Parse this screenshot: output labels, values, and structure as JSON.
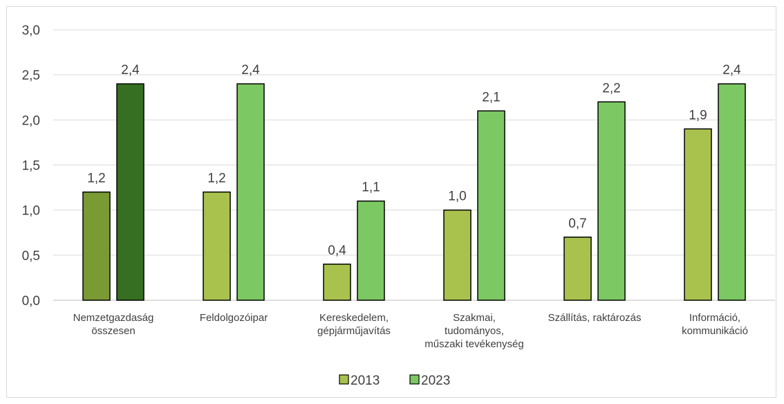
{
  "chart_data": {
    "type": "bar",
    "categories": [
      [
        "Nemzetgazdaság",
        "összesen"
      ],
      [
        "Feldolgozóipar"
      ],
      [
        "Kereskedelem,",
        "gépjárműjavítás"
      ],
      [
        "Szakmai,",
        "tudományos,",
        "műszaki tevékenység"
      ],
      [
        "Szállítás, raktározás"
      ],
      [
        "Információ,",
        "kommunikáció"
      ]
    ],
    "series": [
      {
        "name": "2013",
        "values": [
          1.2,
          1.2,
          0.4,
          1.0,
          0.7,
          1.9
        ],
        "labels": [
          "1,2",
          "1,2",
          "0,4",
          "1,0",
          "0,7",
          "1,9"
        ],
        "color": "#a9c24e",
        "first_color": "#7a9a34"
      },
      {
        "name": "2023",
        "values": [
          2.4,
          2.4,
          1.1,
          2.1,
          2.2,
          2.4
        ],
        "labels": [
          "2,4",
          "2,4",
          "1,1",
          "2,1",
          "2,2",
          "2,4"
        ],
        "color": "#7cc862",
        "first_color": "#366f22"
      }
    ],
    "ylim": [
      0,
      3.0
    ],
    "yticks": [
      "0,0",
      "0,5",
      "1,0",
      "1,5",
      "2,0",
      "2,5",
      "3,0"
    ],
    "grid": true,
    "legend_position": "bottom"
  }
}
